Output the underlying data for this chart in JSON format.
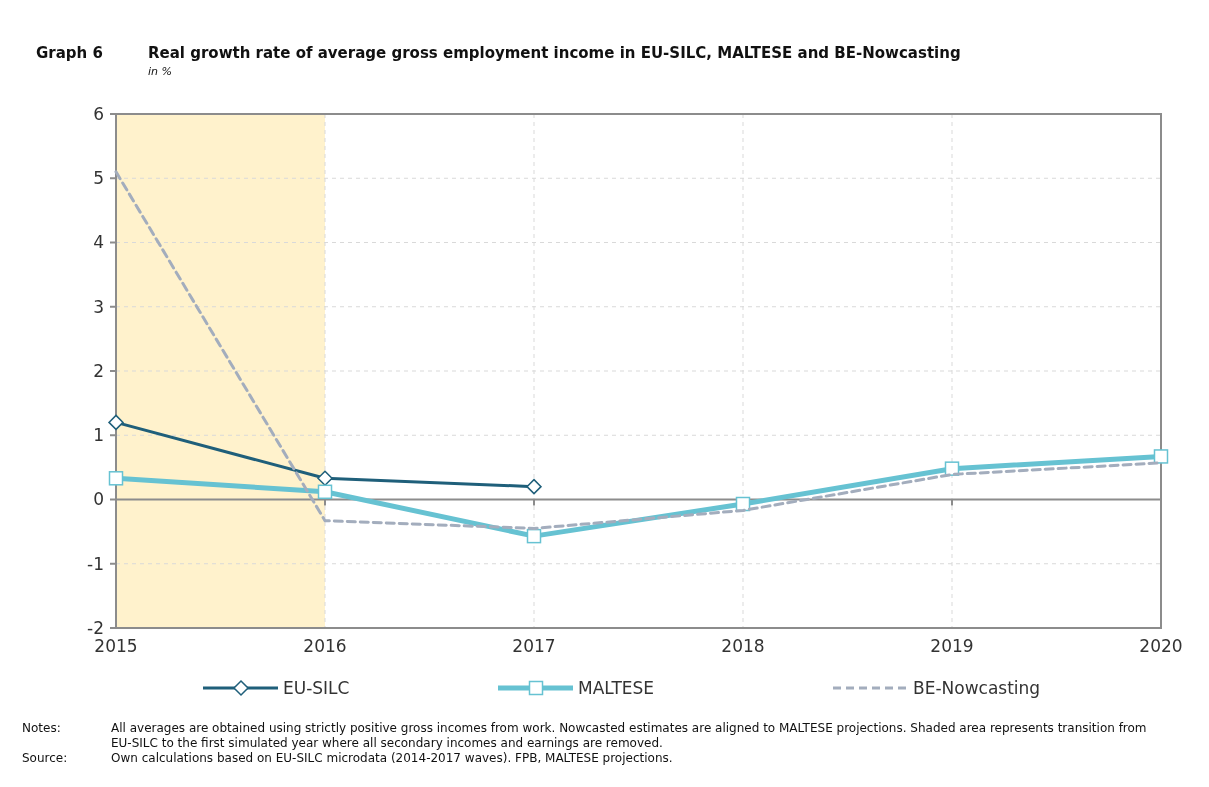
{
  "chart_data": {
    "type": "line",
    "title": "Real growth rate of average gross employment income in EU-SILC, MALTESE and BE-Nowcasting",
    "subtitle": "in %",
    "x": [
      2015,
      2016,
      2017,
      2018,
      2019,
      2020
    ],
    "xlim": [
      2015,
      2020
    ],
    "xticks": [
      2015,
      2016,
      2017,
      2018,
      2019,
      2020
    ],
    "ylim": [
      -2,
      6
    ],
    "yticks": [
      -2,
      -1,
      0,
      1,
      2,
      3,
      4,
      5,
      6
    ],
    "grid": true,
    "legend": "bottom",
    "series": [
      {
        "name": "EU-SILC",
        "color": "#1f5f7a",
        "values": [
          1.2,
          0.33,
          0.2,
          null,
          null,
          null
        ],
        "marker": "diamond",
        "line_style": "solid"
      },
      {
        "name": "MALTESE",
        "color": "#66c2d2",
        "values": [
          0.33,
          0.12,
          -0.57,
          -0.07,
          0.48,
          0.67
        ],
        "marker": "square",
        "line_style": "solid"
      },
      {
        "name": "BE-Nowcasting",
        "color": "#a3adbd",
        "values": [
          5.1,
          -0.33,
          -0.45,
          -0.17,
          0.39,
          0.57
        ],
        "marker": "none",
        "line_style": "dashed"
      }
    ],
    "bands": [
      {
        "axis": "x",
        "from": 2015,
        "to": 2016,
        "color": "#fff2cc"
      }
    ],
    "annotations": [
      "Graph 6",
      "Notes:",
      "All averages are obtained using strictly positive gross incomes from work. Nowcasted estimates are aligned to MALTESE projections. Shaded area represents transition from EU-SILC to the first simulated year where all secondary incomes and earnings are removed.",
      "Source:",
      "Own calculations based on EU-SILC microdata (2014-2017 waves). FPB, MALTESE projections."
    ]
  }
}
